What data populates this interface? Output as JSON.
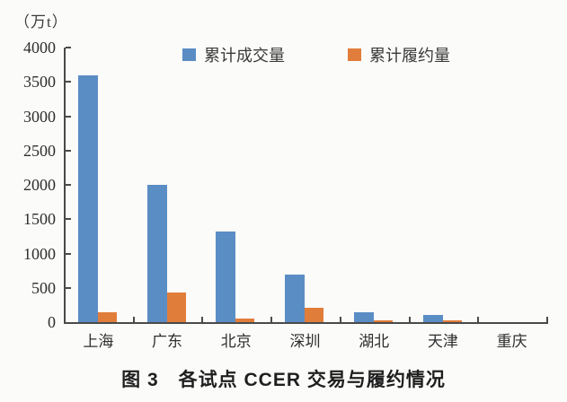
{
  "chart_data": {
    "type": "bar",
    "title": "图 3　各试点 CCER 交易与履约情况",
    "ylabel": "（万t）",
    "categories": [
      "上海",
      "广东",
      "北京",
      "深圳",
      "湖北",
      "天津",
      "重庆"
    ],
    "series": [
      {
        "name": "累计成交量",
        "color": "#5b8dc5",
        "values": [
          3590,
          2000,
          1320,
          690,
          150,
          110,
          0
        ]
      },
      {
        "name": "累计履约量",
        "color": "#e17d3a",
        "values": [
          150,
          430,
          50,
          210,
          30,
          20,
          0
        ]
      }
    ],
    "ylim": [
      0,
      4000
    ],
    "ytick_step": 500,
    "yticks": [
      "0",
      "500",
      "1000",
      "1500",
      "2000",
      "2500",
      "3000",
      "3500",
      "4000"
    ],
    "grid": false,
    "legend_position": "top",
    "axis_color": "#4a4a4a",
    "text_color": "#2e2e2e",
    "background_color": "#fbfbf9"
  }
}
